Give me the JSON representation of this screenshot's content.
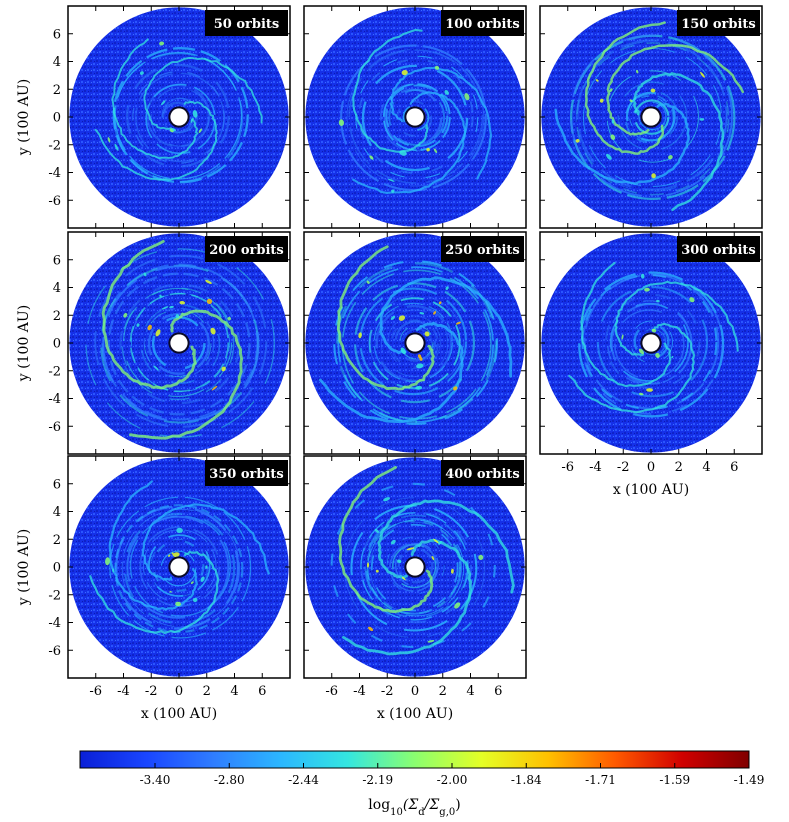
{
  "chart_data": {
    "type": "heatmap",
    "description_free": true,
    "grid": "3x3 panels, 8 used",
    "axes": {
      "xlabel": "x (100 AU)",
      "ylabel": "y (100 AU)",
      "xlim": [
        -8,
        8
      ],
      "ylim": [
        -8,
        8
      ],
      "ticks": [
        "-6",
        "-4",
        "-2",
        "0",
        "2",
        "4",
        "6"
      ]
    },
    "panels": [
      {
        "label": "50 orbits",
        "intensity": 0.25,
        "arms": 3,
        "bright_inner": true
      },
      {
        "label": "100 orbits",
        "intensity": 0.35,
        "arms": 3,
        "bright_inner": false
      },
      {
        "label": "150 orbits",
        "intensity": 0.55,
        "arms": 4,
        "bright_inner": false
      },
      {
        "label": "200 orbits",
        "intensity": 0.75,
        "arms": 2,
        "bright_inner": false
      },
      {
        "label": "250 orbits",
        "intensity": 0.7,
        "arms": 3,
        "bright_inner": true
      },
      {
        "label": "300 orbits",
        "intensity": 0.35,
        "arms": 3,
        "bright_inner": true
      },
      {
        "label": "350 orbits",
        "intensity": 0.4,
        "arms": 3,
        "bright_inner": true
      },
      {
        "label": "400 orbits",
        "intensity": 0.7,
        "arms": 3,
        "bright_inner": false
      }
    ],
    "colorbar": {
      "ticks": [
        "-3.40",
        "-2.80",
        "-2.44",
        "-2.19",
        "-2.00",
        "-1.84",
        "-1.71",
        "-1.59",
        "-1.49"
      ],
      "label_prefix": "log",
      "label_sub": "10",
      "label_main": "(Σ",
      "label_sub2": "d",
      "label_mid": "/Σ",
      "label_sub3": "g,0",
      "label_end": ")",
      "colormap": "jet"
    }
  }
}
